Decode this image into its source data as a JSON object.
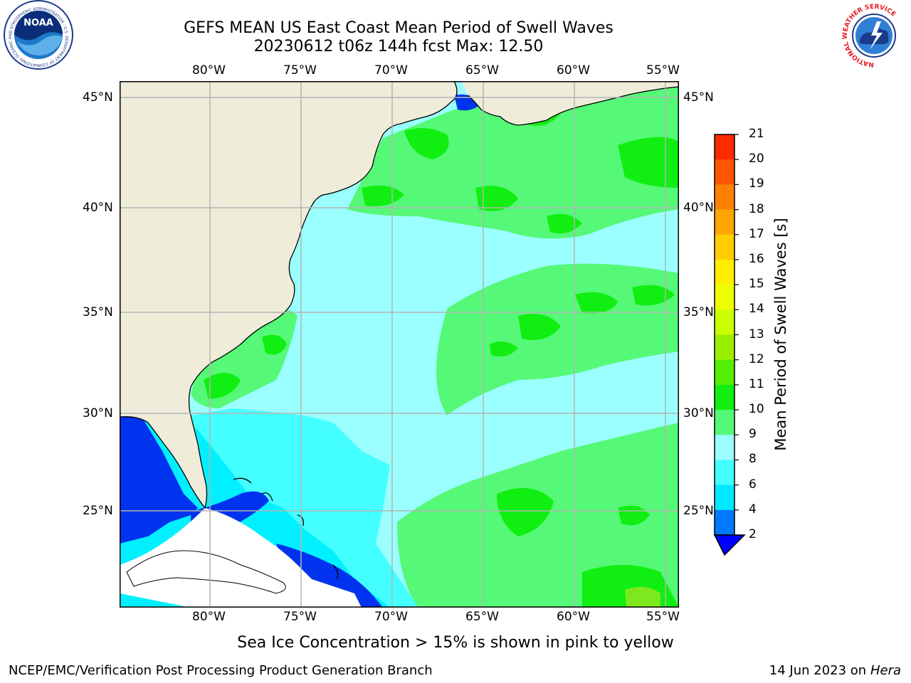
{
  "title": {
    "line1": "GEFS MEAN US East Coast Mean Period of Swell Waves",
    "line2": "20230612 t06z 144h fcst   Max: 12.50"
  },
  "map": {
    "lon_labels": [
      "80°W",
      "75°W",
      "70°W",
      "65°W",
      "60°W",
      "55°W"
    ],
    "lat_labels": [
      "45°N",
      "40°N",
      "35°N",
      "30°N",
      "25°N"
    ],
    "colors": {
      "land": "#efedda",
      "lt_cyan": "#9bffff",
      "cyan": "#44ffff",
      "bright_cyan": "#00f0ff",
      "lt_green": "#55f977",
      "green": "#11ee11",
      "yellow_green": "#7ee81e",
      "blue": "#0033ee",
      "grid": "#b4b4b4"
    }
  },
  "colorbar": {
    "labels": [
      "21",
      "20",
      "19",
      "18",
      "17",
      "16",
      "15",
      "14",
      "13",
      "12",
      "11",
      "10",
      "9",
      "8",
      "6",
      "4",
      "2"
    ],
    "title": "Mean Period of Swell Waves [s]",
    "colors": [
      "#ff0000",
      "#ff2a00",
      "#ff5500",
      "#ff8000",
      "#ffa500",
      "#ffcc00",
      "#ffee00",
      "#eeff00",
      "#ccff00",
      "#99ee00",
      "#55ee00",
      "#11ee11",
      "#55f977",
      "#9bffff",
      "#44ffff",
      "#00e8ff",
      "#0077ff",
      "#0000ff"
    ]
  },
  "note": "Sea Ice Concentration > 15% is shown in pink to yellow",
  "footer": {
    "left": "NCEP/EMC/Verification Post Processing Product Generation Branch",
    "right_date": "14 Jun 2023 on",
    "right_machine": "Hera"
  },
  "logos": {
    "noaa_text": "NOAA",
    "noaa_ring": "NATIONAL OCEANIC AND ATMOSPHERIC ADMINISTRATION · U.S. DEPARTMENT OF COMMERCE",
    "nws_ring": "NATIONAL WEATHER SERVICE"
  }
}
